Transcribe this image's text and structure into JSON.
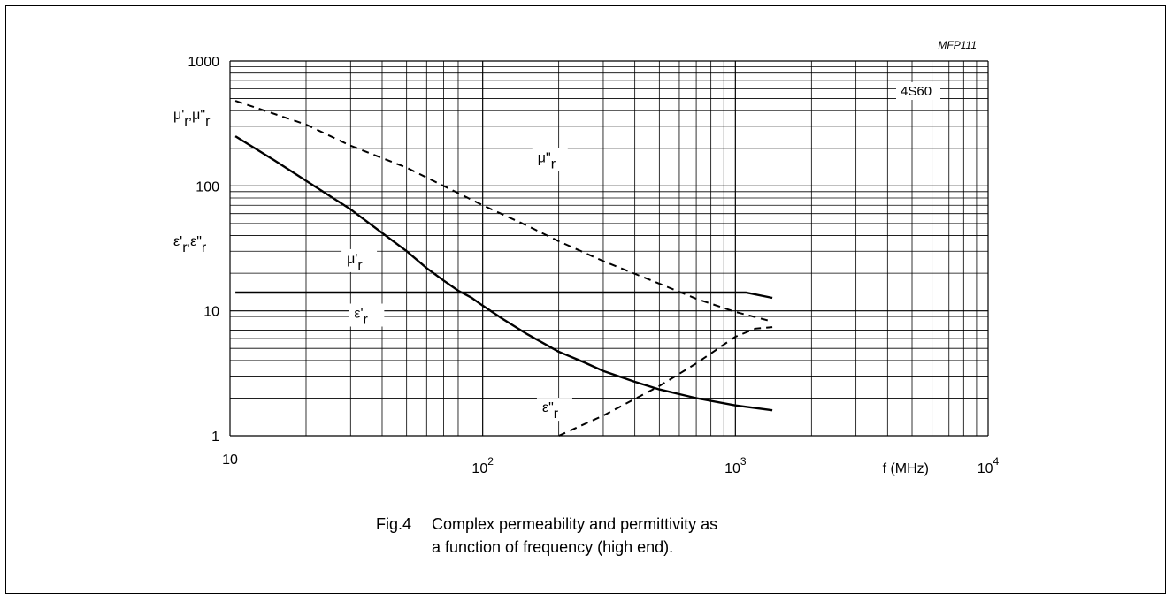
{
  "figure": {
    "code": "MFP111",
    "number": "Fig.4",
    "caption_line1": "Complex permeability and permittivity as",
    "caption_line2": "a function of frequency (high end)."
  },
  "chart_data": {
    "type": "line",
    "xscale": "log",
    "yscale": "log",
    "xlim": [
      10,
      10000
    ],
    "ylim": [
      1,
      1000
    ],
    "grid": true,
    "x_ticks": [
      {
        "value": 10,
        "base": "10",
        "exp": ""
      },
      {
        "value": 100,
        "base": "10",
        "exp": "2"
      },
      {
        "value": 1000,
        "base": "10",
        "exp": "3"
      },
      {
        "value": 10000,
        "base": "10",
        "exp": "4"
      }
    ],
    "y_ticks": [
      {
        "value": 1,
        "label": "1"
      },
      {
        "value": 10,
        "label": "10"
      },
      {
        "value": 100,
        "label": "100"
      },
      {
        "value": 1000,
        "label": "1000"
      }
    ],
    "xlabel": "f  (MHz)",
    "ylabel_mu": {
      "base": "μ'",
      "sub": "r",
      "sep": ",μ\"",
      "sub2": "r"
    },
    "ylabel_eps": {
      "base": "ε'",
      "sub": "r",
      "sep": ",ε\"",
      "sub2": "r"
    },
    "material_label": "4S60",
    "series": [
      {
        "key": "mu_prime",
        "label": {
          "base": "μ'",
          "sub": "r"
        },
        "style": "solid",
        "label_at": [
          29,
          24
        ],
        "points": [
          [
            10.5,
            250
          ],
          [
            15,
            160
          ],
          [
            20,
            110
          ],
          [
            30,
            65
          ],
          [
            40,
            42
          ],
          [
            50,
            30
          ],
          [
            60,
            22
          ],
          [
            70,
            17.5
          ],
          [
            80,
            14.5
          ],
          [
            90,
            12.8
          ],
          [
            100,
            11
          ],
          [
            120,
            8.6
          ],
          [
            150,
            6.5
          ],
          [
            200,
            4.7
          ],
          [
            250,
            3.9
          ],
          [
            300,
            3.3
          ],
          [
            400,
            2.7
          ],
          [
            500,
            2.35
          ],
          [
            700,
            2.0
          ],
          [
            1000,
            1.75
          ],
          [
            1400,
            1.6
          ]
        ]
      },
      {
        "key": "mu_double_prime",
        "label": {
          "base": "μ\"",
          "sub": "r"
        },
        "style": "dashed",
        "label_at": [
          165,
          155
        ],
        "points": [
          [
            10.5,
            480
          ],
          [
            20,
            310
          ],
          [
            30,
            210
          ],
          [
            50,
            140
          ],
          [
            70,
            100
          ],
          [
            100,
            70
          ],
          [
            150,
            48
          ],
          [
            200,
            36
          ],
          [
            300,
            25
          ],
          [
            500,
            16.5
          ],
          [
            700,
            12.5
          ],
          [
            1000,
            9.8
          ],
          [
            1400,
            8.2
          ]
        ]
      },
      {
        "key": "eps_prime",
        "label": {
          "base": "ε'",
          "sub": "r"
        },
        "style": "solid",
        "label_at": [
          31,
          8.8
        ],
        "points": [
          [
            10.5,
            14
          ],
          [
            100,
            14
          ],
          [
            500,
            14
          ],
          [
            1100,
            14
          ],
          [
            1400,
            12.7
          ]
        ]
      },
      {
        "key": "eps_double_prime",
        "label": {
          "base": "ε\"",
          "sub": "r"
        },
        "style": "dashed",
        "label_at": [
          172,
          1.55
        ],
        "points": [
          [
            200,
            1.0
          ],
          [
            300,
            1.45
          ],
          [
            500,
            2.5
          ],
          [
            700,
            3.8
          ],
          [
            1000,
            6.2
          ],
          [
            1200,
            7.2
          ],
          [
            1400,
            7.4
          ]
        ]
      }
    ]
  }
}
